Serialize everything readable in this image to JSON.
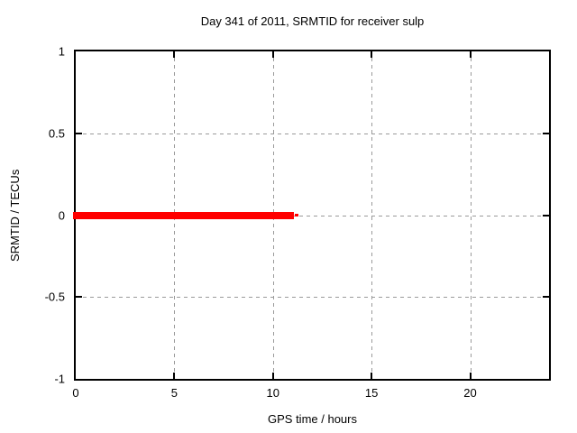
{
  "chart_data": {
    "type": "line",
    "title": "Day 341 of 2011, SRMTID for receiver sulp",
    "xlabel": "GPS time / hours",
    "ylabel": "SRMTID / TECUs",
    "xlim": [
      0,
      24
    ],
    "ylim": [
      -1,
      1
    ],
    "x_ticks": [
      0,
      5,
      10,
      15,
      20
    ],
    "x_tick_labels": [
      "0",
      "5",
      "10",
      "15",
      "20"
    ],
    "y_ticks": [
      -1,
      -0.5,
      0,
      0.5,
      1
    ],
    "y_tick_labels": [
      "-1",
      "-0.5",
      "0",
      "0.5",
      "1"
    ],
    "grid": true,
    "legend": "none",
    "series": [
      {
        "name": "SRMTID",
        "value": 0,
        "x_start": 0,
        "x_end": 11.3,
        "segments": [
          {
            "x0": 0,
            "x1": 11.05,
            "y": 0,
            "thickness_px": 8
          },
          {
            "x0": 11.1,
            "x1": 11.3,
            "y": 0,
            "thickness_px": 3
          }
        ]
      }
    ],
    "colors": {
      "line": "#ff0000",
      "grid": "#9a9a9a",
      "axis": "#000000",
      "background": "#ffffff",
      "text": "#000000"
    }
  }
}
